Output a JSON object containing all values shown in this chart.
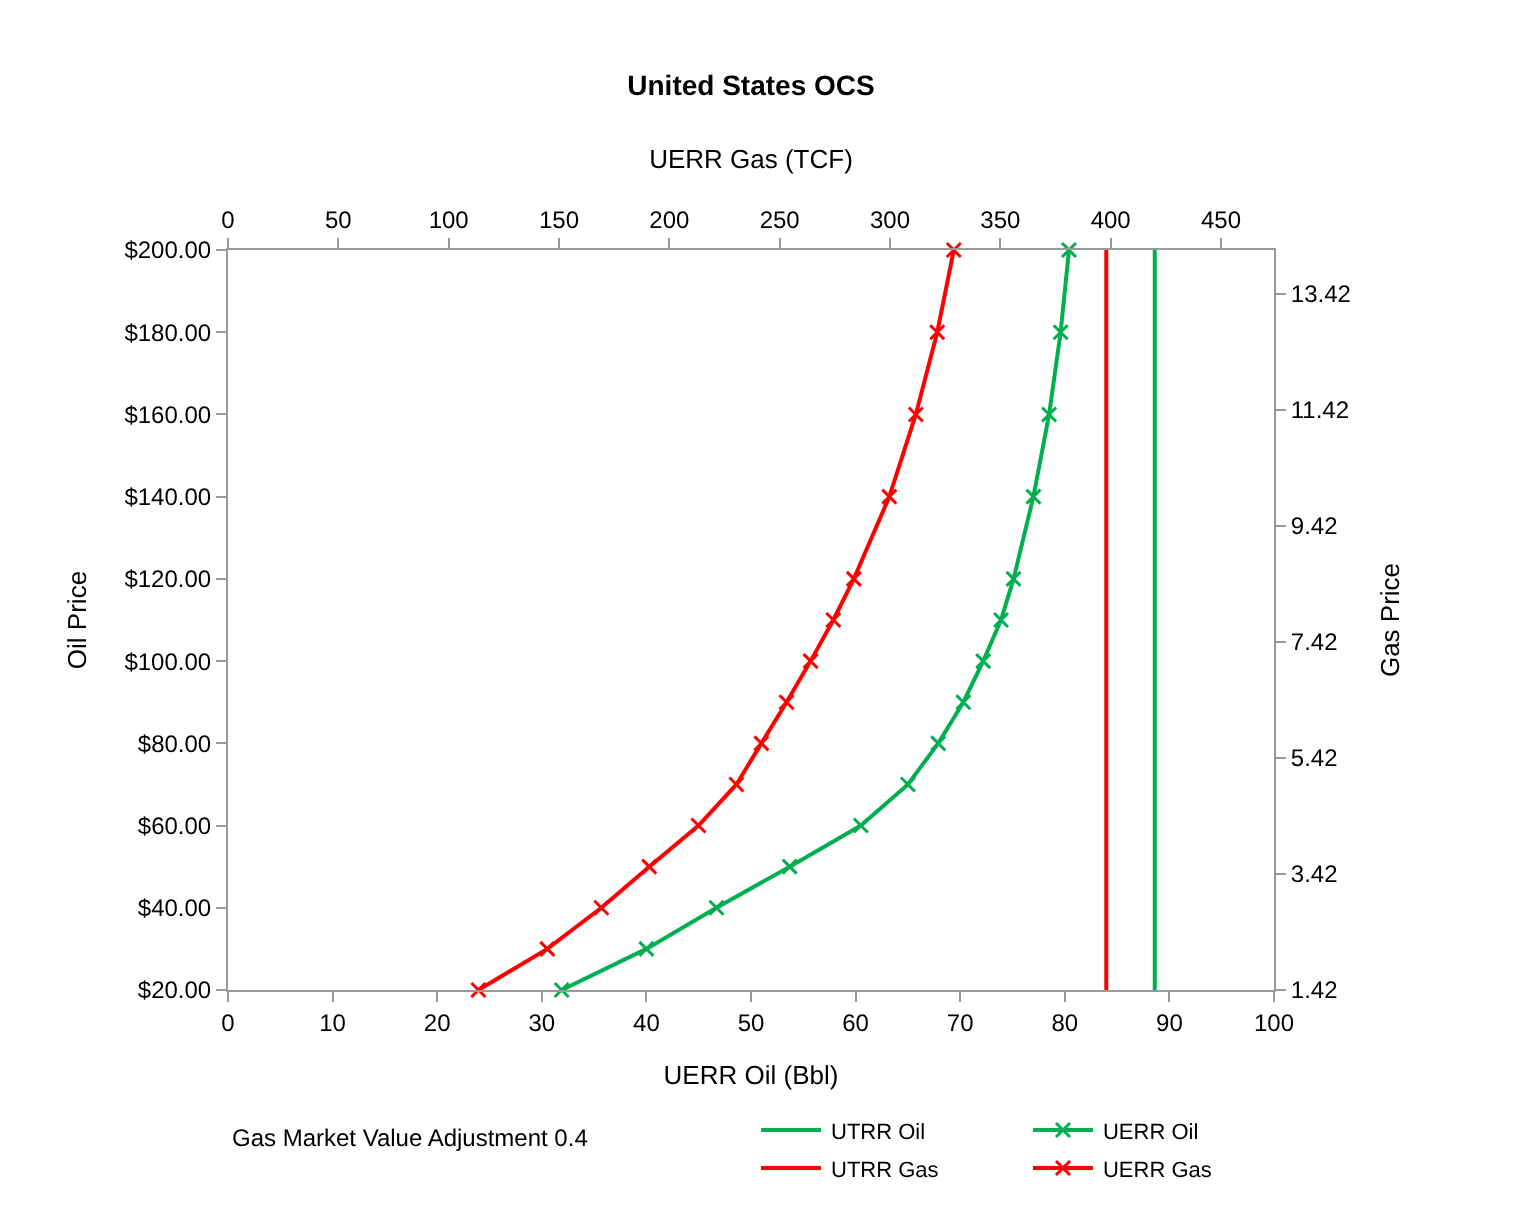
{
  "chart_data": {
    "type": "line",
    "title": "United States OCS",
    "xlabel": "UERR Oil (Bbl)",
    "x2label": "UERR Gas (TCF)",
    "ylabel": "Oil Price",
    "y2label": "Gas Price",
    "xlim": [
      0,
      100
    ],
    "xticks": [
      0,
      10,
      20,
      30,
      40,
      50,
      60,
      70,
      80,
      90,
      100
    ],
    "x2lim": [
      0,
      474
    ],
    "x2ticks": [
      0,
      50,
      100,
      150,
      200,
      250,
      300,
      350,
      400,
      450
    ],
    "ylim": [
      20,
      200
    ],
    "yticks": [
      {
        "value": 20,
        "label": "$20.00"
      },
      {
        "value": 40,
        "label": "$40.00"
      },
      {
        "value": 60,
        "label": "$60.00"
      },
      {
        "value": 80,
        "label": "$80.00"
      },
      {
        "value": 100,
        "label": "$100.00"
      },
      {
        "value": 120,
        "label": "$120.00"
      },
      {
        "value": 140,
        "label": "$140.00"
      },
      {
        "value": 160,
        "label": "$160.00"
      },
      {
        "value": 180,
        "label": "$180.00"
      },
      {
        "value": 200,
        "label": "$200.00"
      }
    ],
    "y2lim": [
      1.42,
      14.17
    ],
    "y2ticks": [
      1.42,
      3.42,
      5.42,
      7.42,
      9.42,
      11.42,
      13.42
    ],
    "legend": "bottom",
    "series": [
      {
        "name": "UTRR Oil",
        "color": "#00b050",
        "marker": "none",
        "x": [
          88.6,
          88.6
        ],
        "values": [
          20,
          200
        ]
      },
      {
        "name": "UERR Oil",
        "color": "#00b050",
        "marker": "cross",
        "x": [
          31.9,
          40.0,
          46.7,
          53.7,
          60.5,
          65.0,
          67.9,
          70.3,
          72.2,
          73.9,
          75.1,
          77.0,
          78.5,
          79.6,
          80.4
        ],
        "values": [
          20,
          30,
          40,
          50,
          60,
          70,
          80,
          90,
          100,
          110,
          120,
          140,
          160,
          180,
          200
        ]
      },
      {
        "name": "UTRR Gas",
        "color": "#ff0000",
        "marker": "none",
        "axis": "x2",
        "x": [
          398,
          398
        ],
        "values": [
          20,
          200
        ]
      },
      {
        "name": "UERR Gas",
        "color": "#ff0000",
        "marker": "cross",
        "axis": "x2",
        "x": [
          113.5,
          144.7,
          169.2,
          190.9,
          213.2,
          230.4,
          241.7,
          253.1,
          264.0,
          274.3,
          283.6,
          299.7,
          311.7,
          321.4,
          328.9
        ],
        "values": [
          20,
          30,
          40,
          50,
          60,
          70,
          80,
          90,
          100,
          110,
          120,
          140,
          160,
          180,
          200
        ]
      }
    ],
    "annotations": [
      "Gas Market Value Adjustment 0.4"
    ]
  }
}
